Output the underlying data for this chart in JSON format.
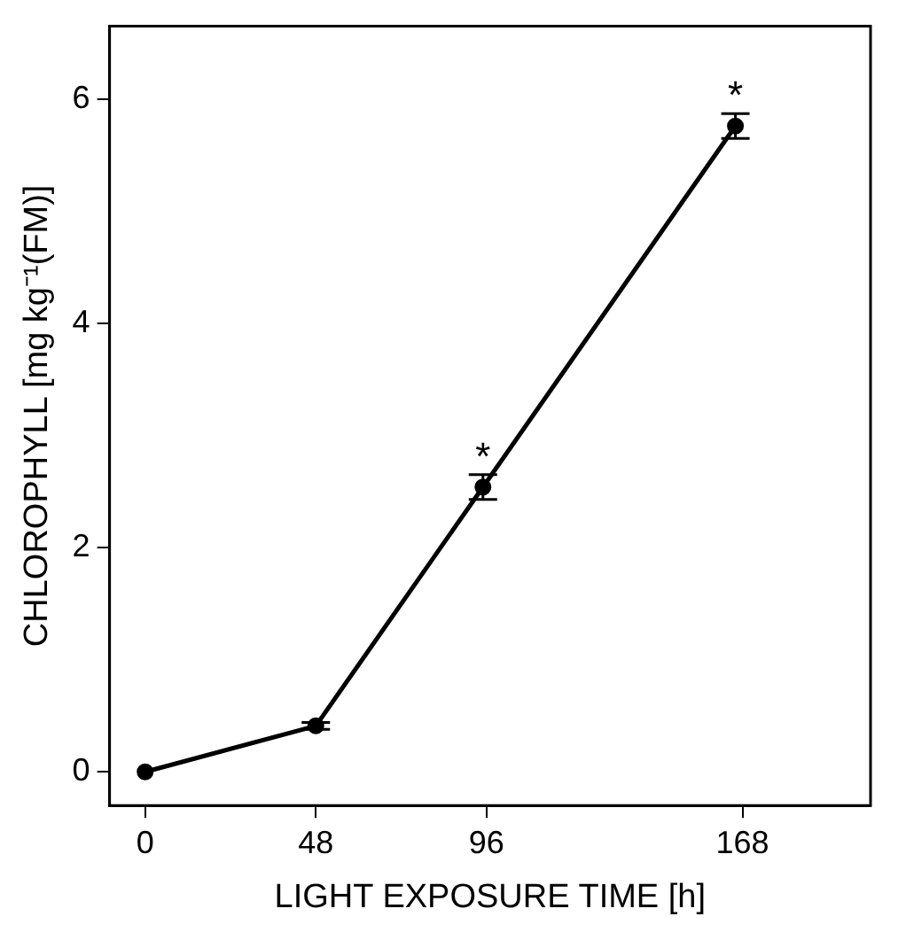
{
  "chart_data": {
    "type": "line",
    "xlabel": "LIGHT EXPOSURE TIME [h]",
    "ylabel": "CHLOROPHYLL [mg kg⁻¹(FM)]",
    "x": [
      0,
      48,
      95,
      166
    ],
    "series": [
      {
        "color": "#000000",
        "values": [
          0,
          0.41,
          2.54,
          5.76
        ],
        "errors": [
          null,
          0.03,
          0.11,
          0.11
        ]
      }
    ],
    "xlim": [
      -10,
      204
    ],
    "xticks": [
      0,
      48,
      96,
      168
    ],
    "ylim": [
      -0.3,
      6.65
    ],
    "yticks": [
      0,
      2,
      4,
      6
    ],
    "grid": false,
    "legend": false,
    "marker": "circle",
    "line_style": "solid",
    "annotations": [
      {
        "text": "*",
        "x": 95,
        "y": 2.54
      },
      {
        "text": "*",
        "x": 166,
        "y": 5.76
      }
    ]
  }
}
